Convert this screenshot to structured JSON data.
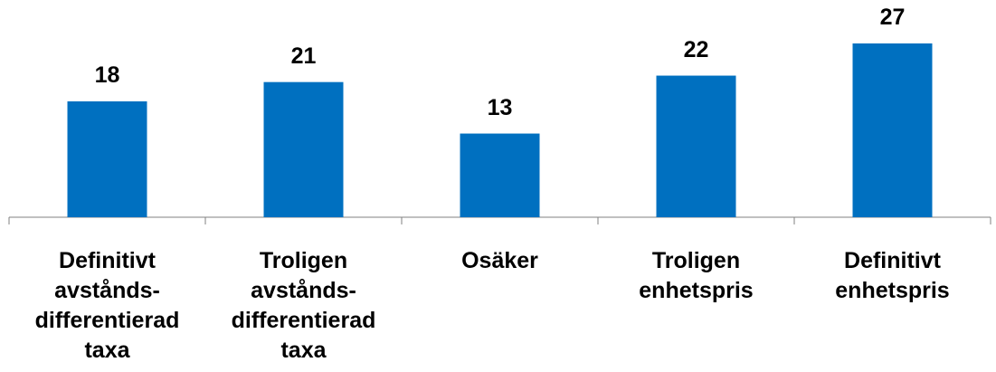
{
  "chart_data": {
    "type": "bar",
    "categories": [
      "Definitivt avstånds-differentierad taxa",
      "Troligen avstånds-differentierad taxa",
      "Osäker",
      "Troligen enhetspris",
      "Definitivt enhetspris"
    ],
    "values": [
      18,
      21,
      13,
      22,
      27
    ],
    "color": "#0070c0"
  }
}
